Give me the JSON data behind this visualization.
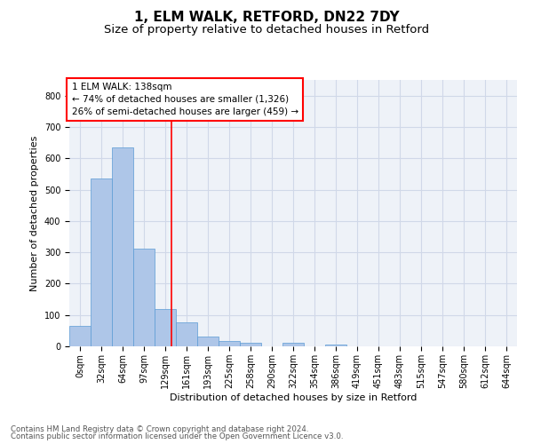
{
  "title1": "1, ELM WALK, RETFORD, DN22 7DY",
  "title2": "Size of property relative to detached houses in Retford",
  "xlabel": "Distribution of detached houses by size in Retford",
  "ylabel": "Number of detached properties",
  "categories": [
    "0sqm",
    "32sqm",
    "64sqm",
    "97sqm",
    "129sqm",
    "161sqm",
    "193sqm",
    "225sqm",
    "258sqm",
    "290sqm",
    "322sqm",
    "354sqm",
    "386sqm",
    "419sqm",
    "451sqm",
    "483sqm",
    "515sqm",
    "547sqm",
    "580sqm",
    "612sqm",
    "644sqm"
  ],
  "bar_values": [
    65,
    535,
    635,
    313,
    118,
    76,
    30,
    16,
    11,
    0,
    10,
    0,
    6,
    0,
    0,
    0,
    0,
    0,
    0,
    0,
    0
  ],
  "bar_color": "#aec6e8",
  "bar_edge_color": "#5b9bd5",
  "grid_color": "#d0d8e8",
  "bg_color": "#eef2f8",
  "vline_color": "red",
  "annotation_text": "1 ELM WALK: 138sqm\n← 74% of detached houses are smaller (1,326)\n26% of semi-detached houses are larger (459) →",
  "ylim": [
    0,
    850
  ],
  "yticks": [
    0,
    100,
    200,
    300,
    400,
    500,
    600,
    700,
    800
  ],
  "footnote1": "Contains HM Land Registry data © Crown copyright and database right 2024.",
  "footnote2": "Contains public sector information licensed under the Open Government Licence v3.0.",
  "title1_fontsize": 11,
  "title2_fontsize": 9.5,
  "xlabel_fontsize": 8,
  "ylabel_fontsize": 8,
  "tick_fontsize": 7,
  "annotation_fontsize": 7.5,
  "footnote_fontsize": 6.2
}
